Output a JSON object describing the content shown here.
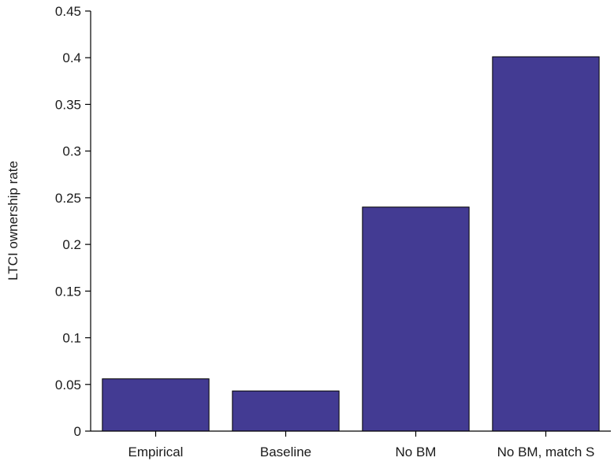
{
  "chart_data": {
    "type": "bar",
    "title": "",
    "xlabel": "",
    "ylabel": "LTCI ownership rate",
    "categories": [
      "Empirical",
      "Baseline",
      "No BM",
      "No BM, match S"
    ],
    "values": [
      0.056,
      0.043,
      0.24,
      0.401
    ],
    "ylim": [
      0,
      0.45
    ],
    "yticks": [
      0,
      0.05,
      0.1,
      0.15,
      0.2,
      0.25,
      0.3,
      0.35,
      0.4,
      0.45
    ],
    "ytick_labels": [
      "0",
      "0.05",
      "0.1",
      "0.15",
      "0.2",
      "0.25",
      "0.3",
      "0.35",
      "0.4",
      "0.45"
    ],
    "grid": false,
    "legend": "none",
    "bar_color": "#433b93",
    "bar_edge_color": "#000000"
  }
}
